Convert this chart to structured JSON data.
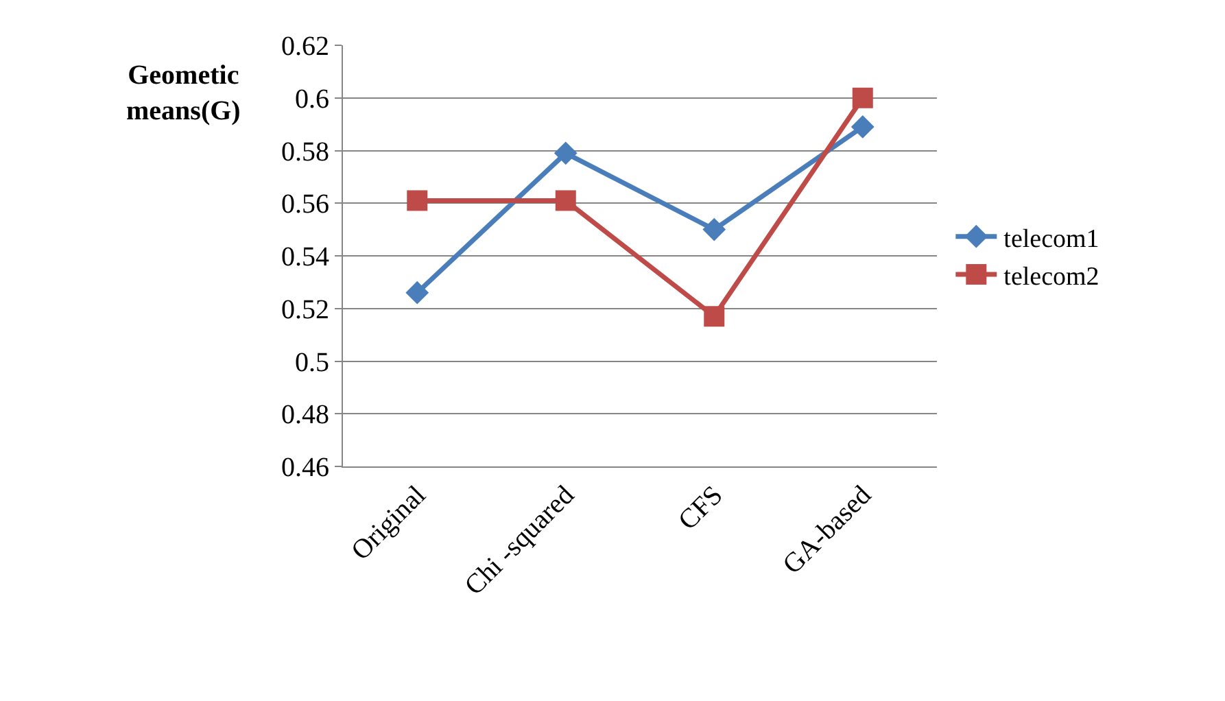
{
  "chart_data": {
    "type": "line",
    "ylabel": "Geometic means(G)",
    "categories": [
      "Original",
      "Chi -squared",
      "CFS",
      "GA-based"
    ],
    "series": [
      {
        "name": "telecom1",
        "color": "#4a7ebb",
        "marker": "diamond",
        "values": [
          0.526,
          0.579,
          0.55,
          0.589
        ]
      },
      {
        "name": "telecom2",
        "color": "#be4b48",
        "marker": "square",
        "values": [
          0.561,
          0.561,
          0.517,
          0.6
        ]
      }
    ],
    "ylim": [
      0.46,
      0.62
    ],
    "yticks": [
      0.46,
      0.48,
      0.5,
      0.52,
      0.54,
      0.56,
      0.58,
      0.6,
      0.62
    ],
    "grid": "y",
    "legend": "right",
    "line_style": "solid"
  }
}
